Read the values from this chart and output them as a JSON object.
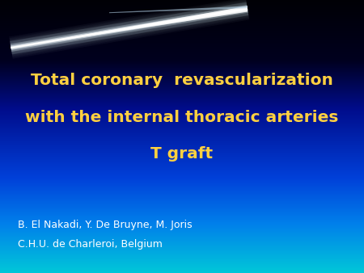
{
  "title_line1": "Total coronary  revascularization",
  "title_line2": "with the internal thoracic arteries",
  "title_line3": "T graft",
  "author_line1": "B. El Nakadi, Y. De Bruyne, M. Joris",
  "author_line2": "C.H.U. de Charleroi, Belgium",
  "title_color": "#FFD040",
  "author_color": "#FFFFFF",
  "title_fontsize": 14.5,
  "author_fontsize": 9,
  "figsize": [
    4.5,
    3.38
  ],
  "dpi": 100,
  "gradient_stops": [
    [
      0.0,
      [
        0.0,
        0.0,
        0.02
      ]
    ],
    [
      0.22,
      [
        0.0,
        0.0,
        0.12
      ]
    ],
    [
      0.4,
      [
        0.0,
        0.05,
        0.55
      ]
    ],
    [
      0.65,
      [
        0.0,
        0.25,
        0.85
      ]
    ],
    [
      0.82,
      [
        0.0,
        0.5,
        0.92
      ]
    ],
    [
      1.0,
      [
        0.0,
        0.78,
        0.85
      ]
    ]
  ]
}
